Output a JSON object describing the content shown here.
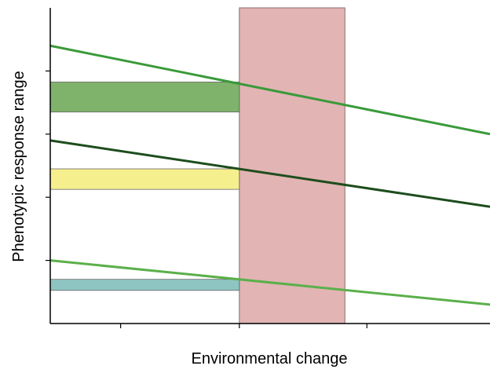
{
  "chart_data": {
    "type": "line",
    "title": "",
    "xlabel": "Environmental change",
    "ylabel": "Phenotypic response range",
    "xlim": [
      0,
      1
    ],
    "ylim": [
      0,
      1
    ],
    "grid": false,
    "x_ticks": [
      0.16,
      0.43,
      0.72
    ],
    "y_ticks": [
      0.2,
      0.4,
      0.6,
      0.8
    ],
    "highlight_band": {
      "x0": 0.43,
      "x1": 0.67,
      "color": "#e2b4b4"
    },
    "series": [
      {
        "x": [
          0,
          1
        ],
        "y": [
          0.88,
          0.6
        ],
        "color": "#3a9a3a"
      },
      {
        "x": [
          0,
          1
        ],
        "y": [
          0.58,
          0.37
        ],
        "color": "#1d4d1d"
      },
      {
        "x": [
          0,
          1
        ],
        "y": [
          0.2,
          0.06
        ],
        "color": "#5bb04a"
      }
    ],
    "range_bars": [
      {
        "x0": 0,
        "x1": 0.43,
        "y0": 0.67,
        "y1": 0.765,
        "color": "#7fb26a"
      },
      {
        "x0": 0,
        "x1": 0.43,
        "y0": 0.425,
        "y1": 0.49,
        "color": "#f6ef8e"
      },
      {
        "x0": 0,
        "x1": 0.43,
        "y0": 0.105,
        "y1": 0.14,
        "color": "#8ec5c3"
      }
    ]
  }
}
